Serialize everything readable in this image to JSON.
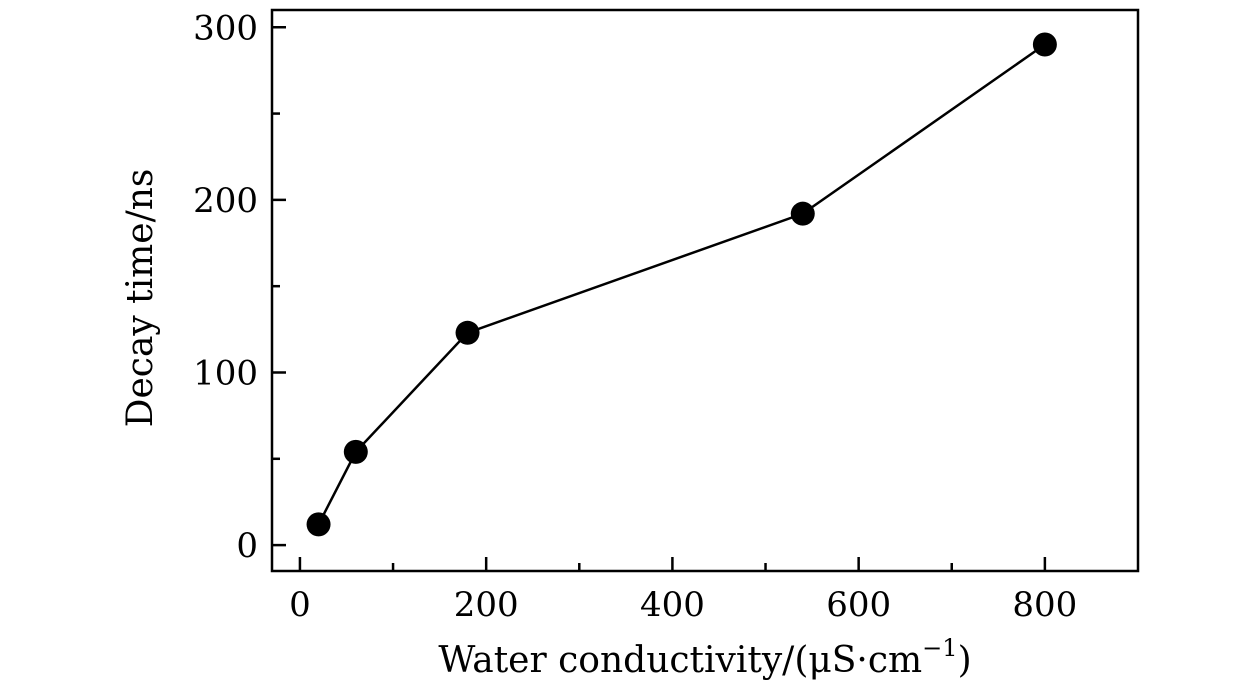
{
  "chart_data": {
    "type": "line",
    "title": "",
    "xlabel": "Water conductivity/(μS·cm",
    "xlabel_sup": "−1",
    "xlabel_close": ")",
    "ylabel": "Decay time/ns",
    "xlim": [
      -30,
      900
    ],
    "ylim": [
      -15,
      310
    ],
    "xticks": [
      0,
      200,
      400,
      600,
      800
    ],
    "xtick_labels": [
      "0",
      "200",
      "400",
      "600",
      "800"
    ],
    "xminor": [
      100,
      300,
      500,
      700
    ],
    "yticks": [
      0,
      100,
      200,
      300
    ],
    "ytick_labels": [
      "0",
      "100",
      "200",
      "300"
    ],
    "yminor": [
      50,
      150,
      250
    ],
    "grid": false,
    "series": [
      {
        "x": [
          20,
          60,
          180,
          540,
          800
        ],
        "y": [
          12,
          54,
          123,
          192,
          290
        ],
        "color": "#000000",
        "marker": "circle-filled"
      }
    ]
  }
}
